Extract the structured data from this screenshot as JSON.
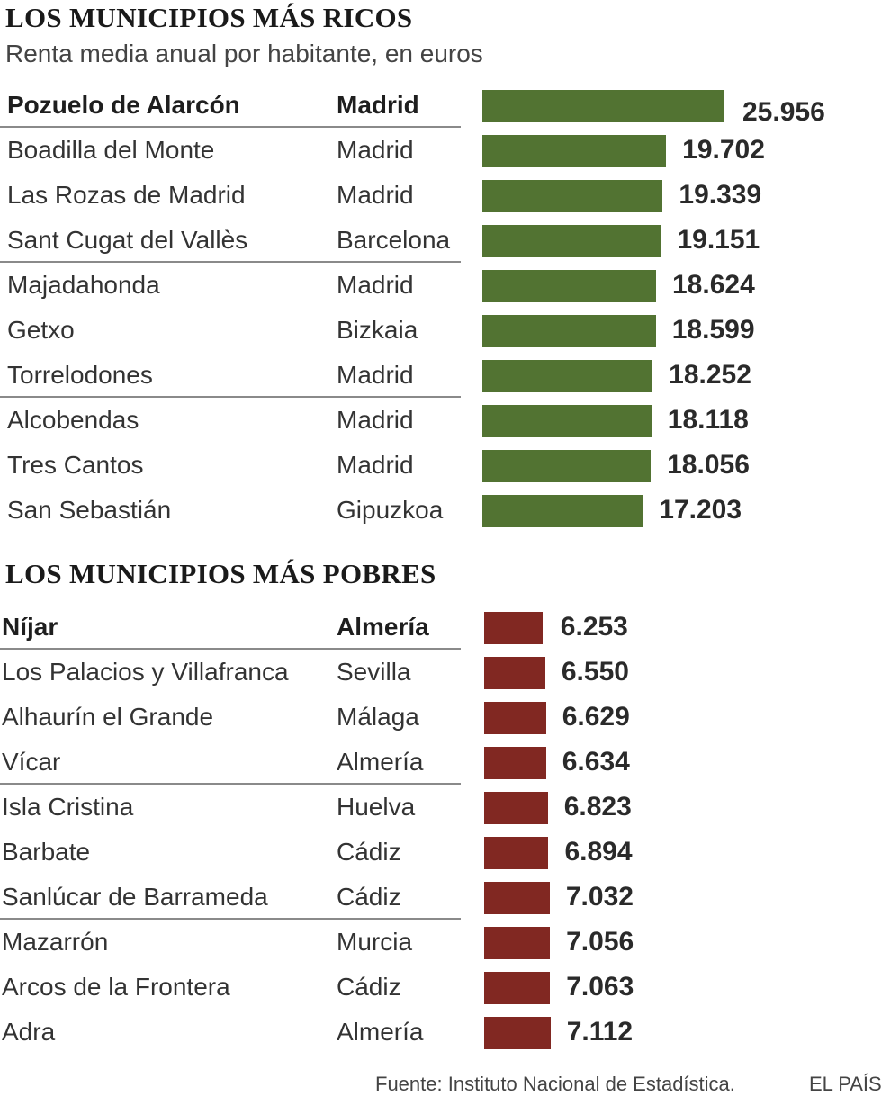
{
  "chart_data": [
    {
      "type": "bar",
      "orientation": "horizontal",
      "title": "LOS MUNICIPIOS MÁS RICOS",
      "subtitle": "Renta media anual por habitante, en euros",
      "color": "#527332",
      "value_max": 25956,
      "rows": [
        {
          "municipio": "Pozuelo de Alarcón",
          "provincia": "Madrid",
          "label": "25.956",
          "value": 25956
        },
        {
          "municipio": "Boadilla del Monte",
          "provincia": "Madrid",
          "label": "19.702",
          "value": 19702
        },
        {
          "municipio": "Las Rozas de Madrid",
          "provincia": "Madrid",
          "label": "19.339",
          "value": 19339
        },
        {
          "municipio": "Sant Cugat del Vallès",
          "provincia": "Barcelona",
          "label": "19.151",
          "value": 19151
        },
        {
          "municipio": "Majadahonda",
          "provincia": "Madrid",
          "label": "18.624",
          "value": 18624
        },
        {
          "municipio": "Getxo",
          "provincia": "Bizkaia",
          "label": "18.599",
          "value": 18599
        },
        {
          "municipio": "Torrelodones",
          "provincia": "Madrid",
          "label": "18.252",
          "value": 18252
        },
        {
          "municipio": "Alcobendas",
          "provincia": "Madrid",
          "label": "18.118",
          "value": 18118
        },
        {
          "municipio": "Tres Cantos",
          "provincia": "Madrid",
          "label": "18.056",
          "value": 18056
        },
        {
          "municipio": "San Sebastián",
          "provincia": "Gipuzkoa",
          "label": "17.203",
          "value": 17203
        }
      ]
    },
    {
      "type": "bar",
      "orientation": "horizontal",
      "title": "LOS MUNICIPIOS MÁS POBRES",
      "color": "#812822",
      "value_max": 25956,
      "rows": [
        {
          "municipio": "Níjar",
          "provincia": "Almería",
          "label": "6.253",
          "value": 6253
        },
        {
          "municipio": "Los Palacios y Villafranca",
          "provincia": "Sevilla",
          "label": "6.550",
          "value": 6550
        },
        {
          "municipio": "Alhaurín el Grande",
          "provincia": "Málaga",
          "label": "6.629",
          "value": 6629
        },
        {
          "municipio": "Vícar",
          "provincia": "Almería",
          "label": "6.634",
          "value": 6634
        },
        {
          "municipio": "Isla Cristina",
          "provincia": "Huelva",
          "label": "6.823",
          "value": 6823
        },
        {
          "municipio": "Barbate",
          "provincia": "Cádiz",
          "label": "6.894",
          "value": 6894
        },
        {
          "municipio": "Sanlúcar de Barrameda",
          "provincia": "Cádiz",
          "label": "7.032",
          "value": 7032
        },
        {
          "municipio": "Mazarrón",
          "provincia": "Murcia",
          "label": "7.056",
          "value": 7056
        },
        {
          "municipio": "Arcos de la Frontera",
          "provincia": "Cádiz",
          "label": "7.063",
          "value": 7063
        },
        {
          "municipio": "Adra",
          "provincia": "Almería",
          "label": "7.112",
          "value": 7112
        }
      ]
    }
  ],
  "footer": {
    "source": "Fuente: Instituto Nacional de Estadística.",
    "brand": "EL PAÍS"
  }
}
